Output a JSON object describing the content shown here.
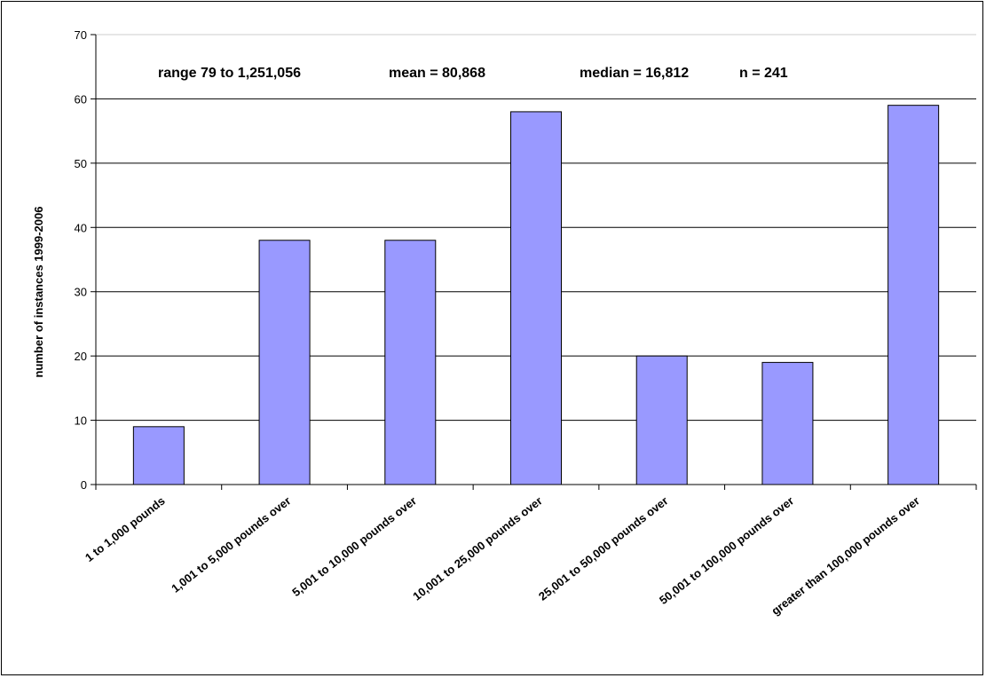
{
  "chart_data": {
    "type": "bar",
    "categories": [
      "1 to 1,000 pounds",
      "1,001 to 5,000 pounds over",
      "5,001 to 10,000 pounds over",
      "10,001 to 25,000 pounds over",
      "25,001 to 50,000 pounds over",
      "50,001 to 100,000 pounds over",
      "greater than 100,000 pounds over"
    ],
    "values": [
      9,
      38,
      38,
      58,
      20,
      19,
      59
    ],
    "title": "",
    "xlabel": "",
    "ylabel": "number of instances 1999-2006",
    "ylim": [
      0,
      70
    ],
    "yticks": [
      0,
      10,
      20,
      30,
      40,
      50,
      60,
      70
    ],
    "grid": true,
    "legend": "none",
    "annotations": [
      "range 79 to 1,251,056",
      "mean = 80,868",
      "median = 16,812",
      "n = 241"
    ],
    "colors": {
      "bar_fill": "#9999FF",
      "bar_stroke": "#000000",
      "grid": "#000000",
      "axis": "#000000"
    }
  }
}
